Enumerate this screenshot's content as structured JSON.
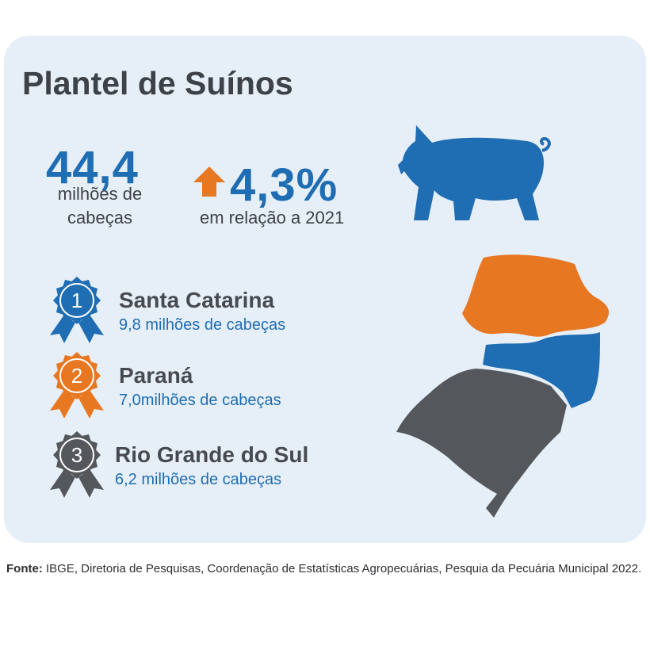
{
  "header": {
    "title": "Plantel de Suínos"
  },
  "total": {
    "value": "44,4",
    "unit_lines": [
      "milhões de",
      "cabeças"
    ]
  },
  "growth": {
    "value": "4,3%",
    "note": "em relação a 2021"
  },
  "ranking": [
    {
      "rank": "1",
      "state": "Santa Catarina",
      "detail": "9,8 milhões de cabeças"
    },
    {
      "rank": "2",
      "state": "Paraná",
      "detail": "7,0milhões de cabeças"
    },
    {
      "rank": "3",
      "state": "Rio Grande do Sul",
      "detail": "6,2 milhões de cabeças"
    }
  ],
  "footer": {
    "label": "Fonte:",
    "text": "IBGE, Diretoria de Pesquisas, Coordenação de Estatísticas Agropecuárias, Pesquia da Pecuária Municipal 2022."
  }
}
